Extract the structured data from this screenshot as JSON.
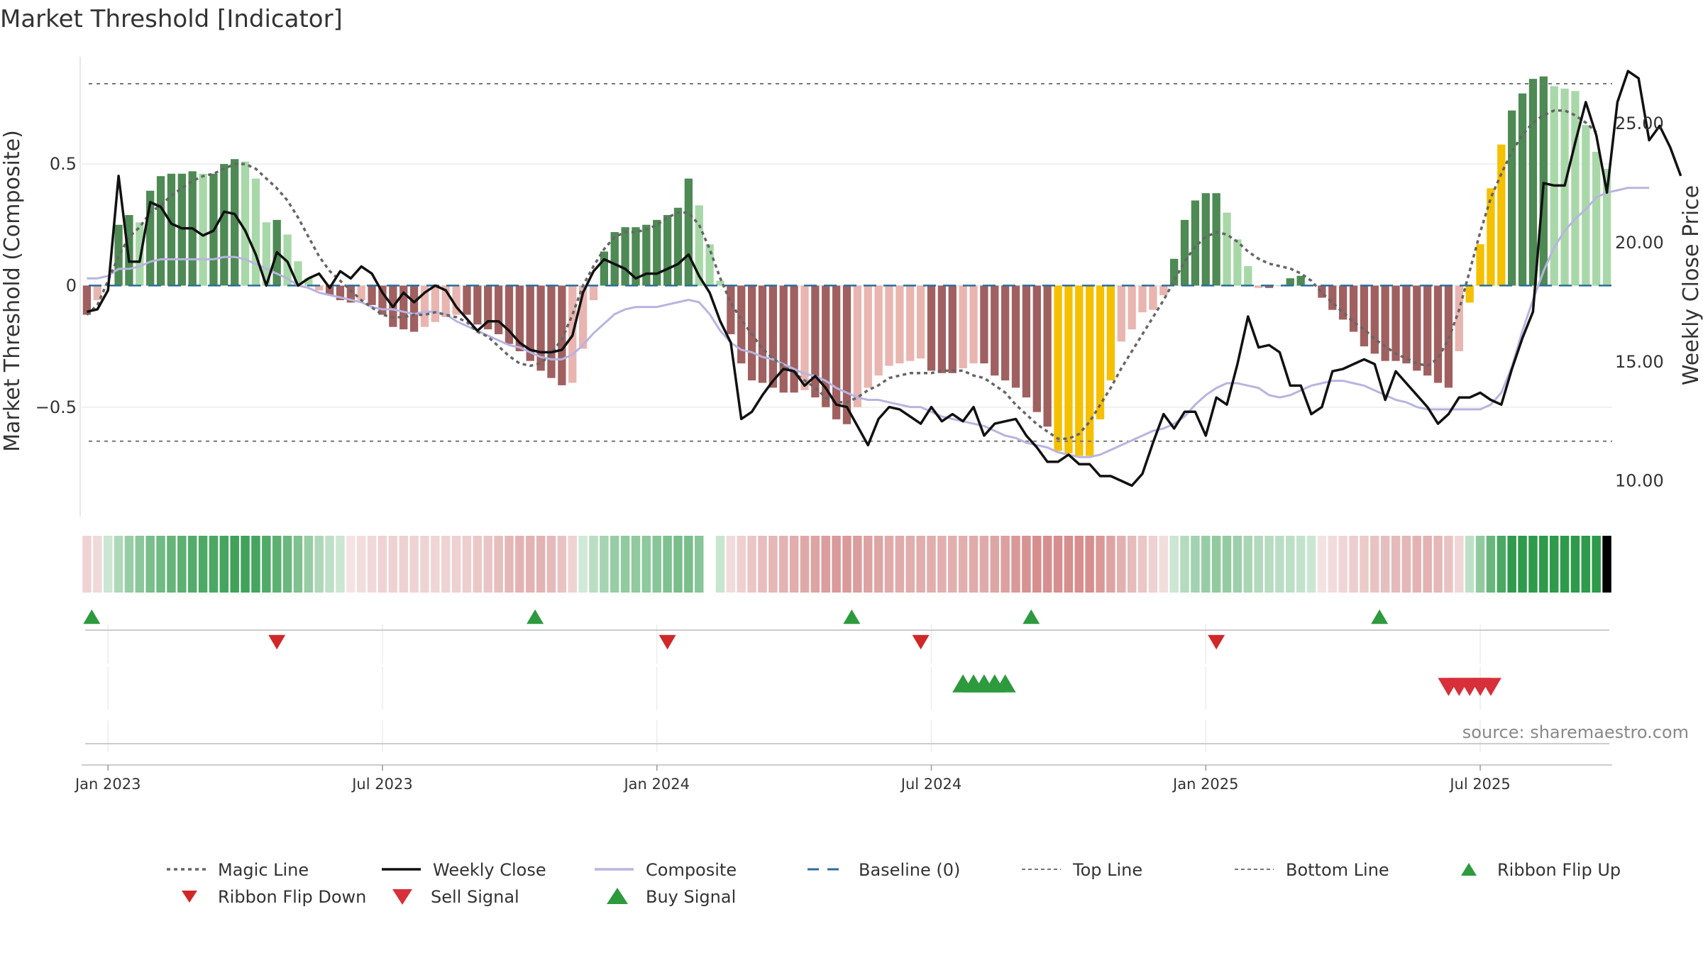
{
  "chart_data": {
    "type": "bar",
    "title": "Market Threshold [Indicator]",
    "ylabel": "Market Threshold (Composite)",
    "y2label": "Weekly Close Price",
    "source": "source: sharemaestro.com",
    "ylim": [
      -0.95,
      0.97
    ],
    "y2lim": [
      8.5,
      28.1
    ],
    "yticks": [
      {
        "v": 0.5,
        "label": "0.5"
      },
      {
        "v": 0,
        "label": "0"
      },
      {
        "v": -0.5,
        "label": "−0.5"
      }
    ],
    "y2ticks": [
      {
        "v": 25,
        "label": "25.00"
      },
      {
        "v": 20,
        "label": "20.00"
      },
      {
        "v": 15,
        "label": "15.00"
      },
      {
        "v": 10,
        "label": "10.00"
      }
    ],
    "xticks": [
      {
        "i": 2,
        "label": "Jan 2023"
      },
      {
        "i": 28,
        "label": "Jul 2023"
      },
      {
        "i": 54,
        "label": "Jan 2024"
      },
      {
        "i": 80,
        "label": "Jul 2024"
      },
      {
        "i": 106,
        "label": "Jan 2025"
      },
      {
        "i": 132,
        "label": "Jul 2025"
      }
    ],
    "top_line": 0.83,
    "bottom_line": -0.64,
    "baseline": 0,
    "colors": {
      "bull_dark": "#4e8a54",
      "bull_light": "#a8d8a8",
      "bear_dark": "#a06060",
      "bear_light": "#e9b5b0",
      "extreme": "#f5c000",
      "composite": "#b8b4e0",
      "magic": "#666666",
      "close": "#111111",
      "baseline": "#2c6e9b",
      "buy": "#2e9a3e",
      "sell": "#d8303a",
      "flip_down": "#d02828"
    },
    "composite_bars": [
      -0.12,
      -0.06,
      0.0,
      0.25,
      0.29,
      0.26,
      0.39,
      0.45,
      0.46,
      0.46,
      0.47,
      0.46,
      0.46,
      0.5,
      0.52,
      0.51,
      0.44,
      0.26,
      0.27,
      0.21,
      0.1,
      0.03,
      -0.02,
      -0.04,
      -0.06,
      -0.07,
      -0.06,
      -0.08,
      -0.12,
      -0.17,
      -0.18,
      -0.19,
      -0.17,
      -0.15,
      -0.13,
      -0.12,
      -0.12,
      -0.16,
      -0.18,
      -0.2,
      -0.24,
      -0.27,
      -0.31,
      -0.35,
      -0.38,
      -0.41,
      -0.4,
      -0.26,
      -0.06,
      0.14,
      0.22,
      0.24,
      0.24,
      0.25,
      0.27,
      0.29,
      0.32,
      0.44,
      0.33,
      0.17,
      0.02,
      -0.2,
      -0.32,
      -0.39,
      -0.4,
      -0.42,
      -0.44,
      -0.44,
      -0.43,
      -0.46,
      -0.5,
      -0.55,
      -0.57,
      -0.5,
      -0.42,
      -0.37,
      -0.33,
      -0.32,
      -0.31,
      -0.3,
      -0.35,
      -0.36,
      -0.36,
      -0.34,
      -0.32,
      -0.32,
      -0.37,
      -0.39,
      -0.42,
      -0.46,
      -0.52,
      -0.58,
      -0.68,
      -0.69,
      -0.7,
      -0.7,
      -0.55,
      -0.39,
      -0.23,
      -0.18,
      -0.11,
      -0.1,
      -0.04,
      0.11,
      0.27,
      0.35,
      0.38,
      0.38,
      0.3,
      0.19,
      0.08,
      -0.01,
      -0.01,
      0.0,
      0.03,
      0.04,
      0.0,
      -0.05,
      -0.1,
      -0.14,
      -0.19,
      -0.25,
      -0.28,
      -0.31,
      -0.31,
      -0.32,
      -0.35,
      -0.37,
      -0.4,
      -0.42,
      -0.27,
      -0.07,
      0.17,
      0.4,
      0.58,
      0.72,
      0.79,
      0.85,
      0.86,
      0.82,
      0.81,
      0.8,
      0.66,
      0.55,
      0.48
    ],
    "extreme_range": [
      92,
      97
    ],
    "weekly_close": [
      17.1,
      17.2,
      18.0,
      22.8,
      19.2,
      19.2,
      21.7,
      21.5,
      20.8,
      20.6,
      20.6,
      20.3,
      20.5,
      21.3,
      21.2,
      20.5,
      19.5,
      18.2,
      19.6,
      19.2,
      18.2,
      18.5,
      18.7,
      18.1,
      18.8,
      18.5,
      19.0,
      18.7,
      17.9,
      17.3,
      17.9,
      17.5,
      17.9,
      18.2,
      18.0,
      17.3,
      16.8,
      16.3,
      16.7,
      16.7,
      16.3,
      15.8,
      15.5,
      15.4,
      15.4,
      15.5,
      16.1,
      17.9,
      18.8,
      19.3,
      19.1,
      18.9,
      18.5,
      18.7,
      18.7,
      18.9,
      19.1,
      19.5,
      18.6,
      17.9,
      16.7,
      15.8,
      12.6,
      12.9,
      13.6,
      14.2,
      14.7,
      14.6,
      14.0,
      14.4,
      13.9,
      13.2,
      13.1,
      12.3,
      11.5,
      12.6,
      13.1,
      13.0,
      12.7,
      12.4,
      13.1,
      12.5,
      12.8,
      12.5,
      13.1,
      11.9,
      12.4,
      12.5,
      12.6,
      11.9,
      11.4,
      10.8,
      10.8,
      11.1,
      10.7,
      10.7,
      10.2,
      10.2,
      10.0,
      9.8,
      10.3,
      11.6,
      12.8,
      12.2,
      12.9,
      12.9,
      11.9,
      13.5,
      13.2,
      14.9,
      16.9,
      15.6,
      15.7,
      15.4,
      14.0,
      14.0,
      12.8,
      13.1,
      14.6,
      14.7,
      14.9,
      15.1,
      14.9,
      13.4,
      14.6,
      14.1,
      13.6,
      13.1,
      12.4,
      12.8,
      13.5,
      13.5,
      13.7,
      13.4,
      13.2,
      14.7,
      16.0,
      17.1,
      22.5,
      22.4,
      22.4,
      24.2,
      25.9,
      24.5,
      22.1,
      25.9,
      27.2,
      26.9,
      24.3,
      24.9,
      24.0,
      22.8
    ],
    "composite_line": [
      18.5,
      18.5,
      18.6,
      18.9,
      18.9,
      19.0,
      19.2,
      19.3,
      19.3,
      19.3,
      19.3,
      19.3,
      19.3,
      19.4,
      19.4,
      19.3,
      19.1,
      18.9,
      18.7,
      18.5,
      18.2,
      18.1,
      17.9,
      17.8,
      17.7,
      17.6,
      17.5,
      17.3,
      17.2,
      17.2,
      17.1,
      17.0,
      17.1,
      17.1,
      17.0,
      16.7,
      16.5,
      16.3,
      16.1,
      15.9,
      15.7,
      15.6,
      15.4,
      15.2,
      15.1,
      15.1,
      15.3,
      15.7,
      16.2,
      16.6,
      17.0,
      17.2,
      17.3,
      17.3,
      17.3,
      17.4,
      17.5,
      17.6,
      17.5,
      17.0,
      16.3,
      15.8,
      15.5,
      15.4,
      15.2,
      15.1,
      14.9,
      14.7,
      14.5,
      14.4,
      14.2,
      13.9,
      13.7,
      13.5,
      13.4,
      13.4,
      13.3,
      13.2,
      13.1,
      13.1,
      12.9,
      12.7,
      12.6,
      12.5,
      12.4,
      12.3,
      12.1,
      11.9,
      11.8,
      11.6,
      11.5,
      11.4,
      11.2,
      11.1,
      11.0,
      11.0,
      11.1,
      11.3,
      11.5,
      11.7,
      11.9,
      12.1,
      12.2,
      12.4,
      12.7,
      13.2,
      13.6,
      13.9,
      14.1,
      14.1,
      14.0,
      13.9,
      13.6,
      13.5,
      13.6,
      13.8,
      14.0,
      14.1,
      14.2,
      14.2,
      14.1,
      14.0,
      13.8,
      13.6,
      13.4,
      13.3,
      13.1,
      13.0,
      13.0,
      13.0,
      13.0,
      13.0,
      13.0,
      13.2,
      13.7,
      14.8,
      16.3,
      17.6,
      18.8,
      19.8,
      20.5,
      21.0,
      21.4,
      21.9,
      22.1,
      22.2,
      22.3,
      22.3,
      22.3
    ],
    "magic_line": [
      -0.12,
      -0.08,
      0.02,
      0.12,
      0.2,
      0.24,
      0.3,
      0.33,
      0.37,
      0.4,
      0.43,
      0.45,
      0.46,
      0.48,
      0.5,
      0.5,
      0.48,
      0.44,
      0.4,
      0.35,
      0.28,
      0.2,
      0.12,
      0.06,
      0.02,
      -0.02,
      -0.06,
      -0.09,
      -0.12,
      -0.13,
      -0.13,
      -0.12,
      -0.12,
      -0.11,
      -0.12,
      -0.13,
      -0.15,
      -0.19,
      -0.21,
      -0.25,
      -0.29,
      -0.32,
      -0.33,
      -0.32,
      -0.28,
      -0.22,
      -0.12,
      0.0,
      0.08,
      0.15,
      0.2,
      0.22,
      0.22,
      0.23,
      0.25,
      0.28,
      0.3,
      0.3,
      0.25,
      0.15,
      0.03,
      -0.07,
      -0.14,
      -0.2,
      -0.26,
      -0.3,
      -0.33,
      -0.36,
      -0.39,
      -0.42,
      -0.46,
      -0.48,
      -0.48,
      -0.46,
      -0.43,
      -0.41,
      -0.38,
      -0.37,
      -0.36,
      -0.36,
      -0.36,
      -0.35,
      -0.35,
      -0.35,
      -0.37,
      -0.38,
      -0.41,
      -0.44,
      -0.49,
      -0.53,
      -0.57,
      -0.6,
      -0.63,
      -0.63,
      -0.61,
      -0.56,
      -0.49,
      -0.42,
      -0.34,
      -0.27,
      -0.2,
      -0.13,
      -0.06,
      0.02,
      0.1,
      0.16,
      0.2,
      0.22,
      0.21,
      0.18,
      0.14,
      0.11,
      0.09,
      0.08,
      0.07,
      0.05,
      0.02,
      -0.03,
      -0.07,
      -0.11,
      -0.15,
      -0.18,
      -0.22,
      -0.25,
      -0.28,
      -0.3,
      -0.32,
      -0.33,
      -0.3,
      -0.22,
      -0.1,
      0.06,
      0.22,
      0.36,
      0.46,
      0.55,
      0.62,
      0.67,
      0.7,
      0.72,
      0.72,
      0.7,
      0.67,
      0.63
    ],
    "ribbon_flip_up": [
      1,
      43,
      73,
      90,
      123
    ],
    "ribbon_flip_down": [
      18,
      55,
      79,
      107
    ],
    "buy_signals": [
      83,
      84,
      85,
      86,
      87
    ],
    "sell_signals": [
      129,
      130,
      131,
      132,
      133
    ],
    "legend": [
      {
        "key": "magic",
        "label": "Magic Line"
      },
      {
        "key": "close",
        "label": "Weekly Close"
      },
      {
        "key": "composite",
        "label": "Composite"
      },
      {
        "key": "baseline",
        "label": "Baseline (0)"
      },
      {
        "key": "top",
        "label": "Top Line"
      },
      {
        "key": "bottom",
        "label": "Bottom Line"
      },
      {
        "key": "flipup",
        "label": "Ribbon Flip Up"
      },
      {
        "key": "flipdown",
        "label": "Ribbon Flip Down"
      },
      {
        "key": "sell",
        "label": "Sell Signal"
      },
      {
        "key": "buy",
        "label": "Buy Signal"
      }
    ]
  }
}
